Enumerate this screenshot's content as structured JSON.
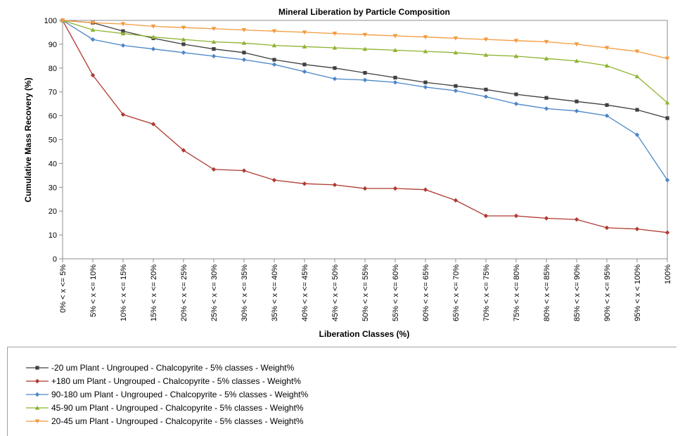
{
  "chart_data": {
    "type": "line",
    "title": "Mineral Liberation by Particle Composition",
    "xlabel": "Liberation Classes (%)",
    "ylabel": "Cumulative Mass Recovery (%)",
    "ylim": [
      0,
      100
    ],
    "yticks": [
      0,
      10,
      20,
      30,
      40,
      50,
      60,
      70,
      80,
      90,
      100
    ],
    "grid": false,
    "legend_position": "bottom",
    "categories": [
      "0% < x <= 5%",
      "5% < x <= 10%",
      "10% < x <= 15%",
      "15% < x <= 20%",
      "20% < x <= 25%",
      "25% < x <= 30%",
      "30% < x <= 35%",
      "35% < x <= 40%",
      "40% < x <= 45%",
      "45% < x <= 50%",
      "50% < x <= 55%",
      "55% < x <= 60%",
      "60% < x <= 65%",
      "65% < x <= 70%",
      "70% < x <= 75%",
      "75% < x <= 80%",
      "80% < x <= 85%",
      "85% < x <= 90%",
      "90% < x <= 95%",
      "95% < x < 100%",
      "100%"
    ],
    "series": [
      {
        "name": "-20 um Plant - Ungrouped - Chalcopyrite - 5% classes - Weight%",
        "color": "#404040",
        "marker": "square",
        "values": [
          100,
          99,
          95.5,
          92.5,
          90,
          88,
          86.5,
          83.5,
          81.5,
          80,
          78,
          76,
          74,
          72.5,
          71,
          69,
          67.5,
          66,
          64.5,
          62.5,
          59
        ]
      },
      {
        "name": "+180 um Plant - Ungrouped - Chalcopyrite - 5% classes - Weight%",
        "color": "#b03a32",
        "marker": "diamond",
        "values": [
          100,
          77,
          60.5,
          56.5,
          45.5,
          37.5,
          37,
          33,
          31.5,
          31,
          29.5,
          29.5,
          29,
          24.5,
          18,
          18,
          17,
          16.5,
          13,
          12.5,
          11
        ]
      },
      {
        "name": "90-180 um Plant - Ungrouped - Chalcopyrite - 5% classes - Weight%",
        "color": "#4a86c8",
        "marker": "diamond",
        "values": [
          100,
          92,
          89.5,
          88,
          86.5,
          85,
          83.5,
          81.5,
          78.5,
          75.5,
          75,
          74,
          72,
          70.5,
          68,
          65,
          63,
          62,
          60,
          52,
          33
        ]
      },
      {
        "name": "45-90 um Plant - Ungrouped - Chalcopyrite - 5% classes - Weight%",
        "color": "#8db32f",
        "marker": "triangle",
        "values": [
          100,
          96,
          94.5,
          93,
          92,
          91,
          90.5,
          89.5,
          89,
          88.5,
          88,
          87.5,
          87,
          86.5,
          85.5,
          85,
          84,
          83,
          81,
          76.5,
          65.5
        ]
      },
      {
        "name": "20-45 um Plant - Ungrouped - Chalcopyrite - 5% classes - Weight%",
        "color": "#f39a3e",
        "marker": "triangle-down",
        "values": [
          100,
          99,
          98.5,
          97.5,
          97,
          96.5,
          96,
          95.5,
          95,
          94.5,
          94,
          93.5,
          93,
          92.5,
          92,
          91.5,
          91,
          90,
          88.5,
          87,
          84
        ]
      }
    ]
  }
}
